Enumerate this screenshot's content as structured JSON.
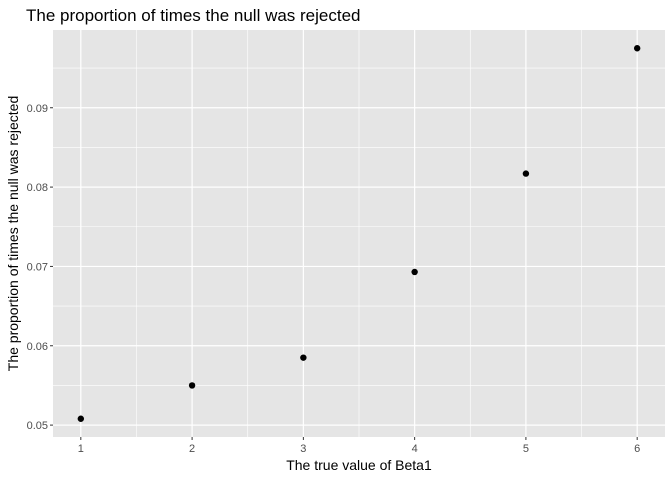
{
  "chart_data": {
    "type": "scatter",
    "title": "The proportion of times the null was rejected",
    "xlabel": "The true value of Beta1",
    "ylabel": "The proportion of times the null was rejected",
    "x": [
      1,
      2,
      3,
      4,
      5,
      6
    ],
    "y": [
      0.0508,
      0.055,
      0.0585,
      0.0693,
      0.0817,
      0.0975
    ],
    "xlim": [
      0.75,
      6.25
    ],
    "ylim": [
      0.0485,
      0.0998
    ],
    "x_ticks": [
      1,
      2,
      3,
      4,
      5,
      6
    ],
    "x_tick_labels": [
      "1",
      "2",
      "3",
      "4",
      "5",
      "6"
    ],
    "y_ticks": [
      0.05,
      0.06,
      0.07,
      0.08,
      0.09
    ],
    "y_tick_labels": [
      "0.05",
      "0.06",
      "0.07",
      "0.08",
      "0.09"
    ],
    "grid": true,
    "legend": "none",
    "colors": {
      "panel_background": "#e5e5e5",
      "grid": "#ffffff",
      "point": "#000000",
      "tick_text": "#4d4d4d"
    }
  }
}
